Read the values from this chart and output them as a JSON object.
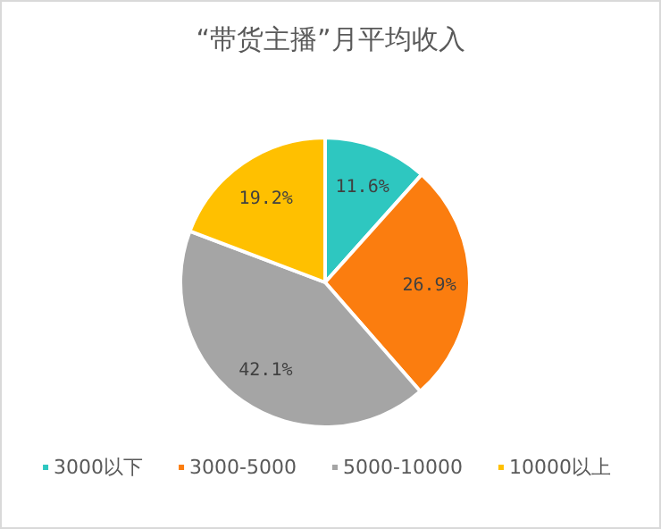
{
  "chart_data": {
    "type": "pie",
    "title": "“带货主播”月平均收入",
    "categories": [
      "3000以下",
      "3000-5000",
      "5000-10000",
      "10000以上"
    ],
    "values": [
      11.6,
      26.9,
      42.1,
      19.2
    ],
    "value_labels": [
      "11.6%",
      "26.9%",
      "42.1%",
      "19.2%"
    ],
    "colors": [
      "#2ec7c0",
      "#fb7d0f",
      "#a5a5a5",
      "#ffc000"
    ],
    "legend": "bottom"
  }
}
